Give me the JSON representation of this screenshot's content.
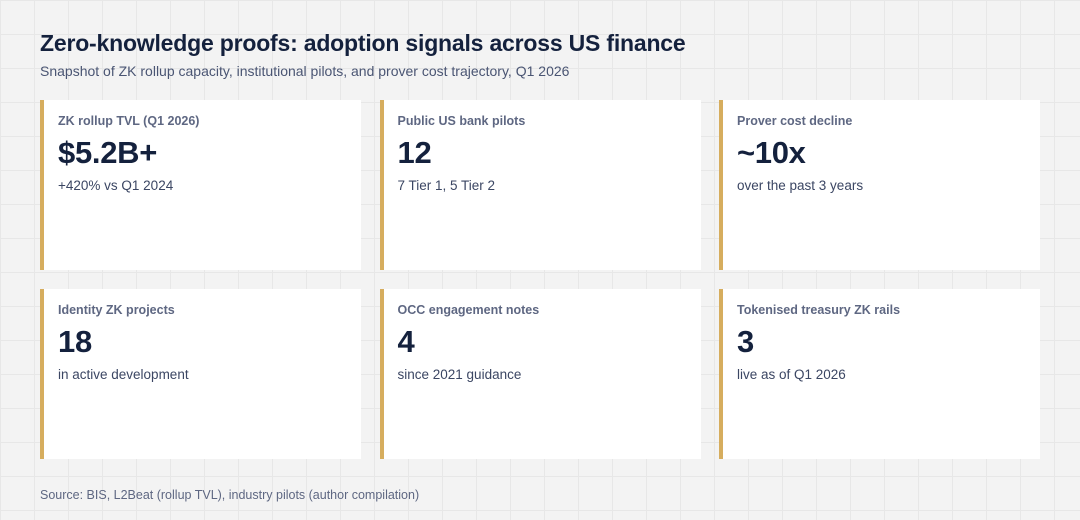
{
  "header": {
    "title": "Zero-knowledge proofs: adoption signals across US finance",
    "subtitle": "Snapshot of ZK rollup capacity, institutional pilots, and prover cost trajectory, Q1 2026"
  },
  "cards": [
    {
      "label": "ZK rollup TVL (Q1 2026)",
      "value": "$5.2B+",
      "note": "+420% vs Q1 2024"
    },
    {
      "label": "Public US bank pilots",
      "value": "12",
      "note": "7 Tier 1, 5 Tier 2"
    },
    {
      "label": "Prover cost decline",
      "value": "~10x",
      "note": "over the past 3 years"
    },
    {
      "label": "Identity ZK projects",
      "value": "18",
      "note": "in active development"
    },
    {
      "label": "OCC engagement notes",
      "value": "4",
      "note": "since 2021 guidance"
    },
    {
      "label": "Tokenised treasury ZK rails",
      "value": "3",
      "note": "live as of Q1 2026"
    }
  ],
  "footer": {
    "source": "Source: BIS, L2Beat (rollup TVL), industry pilots (author compilation)"
  },
  "colors": {
    "background": "#f3f3f3",
    "card": "#ffffff",
    "accent": "#d6ad5e",
    "heading": "#14213d",
    "muted": "#5e6782"
  }
}
